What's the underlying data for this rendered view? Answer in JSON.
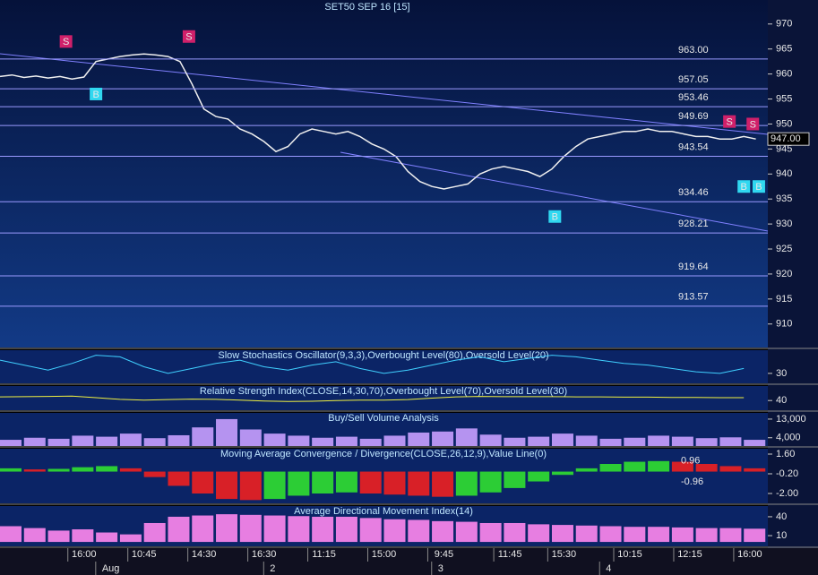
{
  "chart_data": [
    {
      "type": "line",
      "title": "SET50 SEP 16  [15]",
      "x": [
        0,
        2,
        4,
        6,
        8,
        10,
        12,
        14,
        16,
        18,
        20,
        22,
        24,
        26,
        28,
        30,
        32,
        34,
        36,
        38,
        40,
        42,
        44,
        46,
        48,
        50,
        52,
        54,
        56,
        58,
        60,
        62,
        64,
        66,
        68,
        70,
        72,
        74,
        76,
        78,
        80,
        82,
        84,
        86,
        88,
        90,
        92,
        94,
        96,
        98,
        100,
        102,
        104,
        106,
        108,
        110,
        112,
        114,
        116,
        118,
        120,
        122,
        124,
        126
      ],
      "values": [
        959.5,
        959.8,
        959.3,
        959.6,
        959.2,
        959.5,
        959.0,
        959.4,
        962.5,
        963.0,
        963.5,
        963.8,
        964.0,
        963.8,
        963.5,
        962.5,
        958.0,
        953.0,
        951.5,
        951.0,
        949.0,
        948.0,
        946.5,
        944.5,
        945.5,
        948.0,
        949.0,
        948.5,
        948.0,
        948.5,
        947.5,
        946.0,
        945.0,
        943.5,
        940.5,
        938.5,
        937.5,
        937.0,
        937.5,
        938.0,
        940.0,
        941.0,
        941.5,
        941.0,
        940.5,
        939.5,
        941.0,
        943.5,
        945.5,
        947.0,
        947.5,
        948.0,
        948.5,
        948.5,
        949.0,
        948.5,
        948.5,
        948.0,
        947.5,
        947.5,
        947.0,
        947.0,
        947.5,
        947.0
      ],
      "color": "#f0f0f0",
      "xlim": [
        0,
        128
      ],
      "ylim": [
        905.3,
        974.8
      ],
      "yticks": [
        910,
        915,
        920,
        925,
        930,
        935,
        940,
        945,
        950,
        955,
        960,
        965,
        970
      ],
      "xticks": [
        {
          "value": 14,
          "label": "16:00"
        },
        {
          "value": 24,
          "label": "10:45"
        },
        {
          "value": 34,
          "label": "14:30"
        },
        {
          "value": 44,
          "label": "16:30"
        },
        {
          "value": 54,
          "label": "11:15"
        },
        {
          "value": 64,
          "label": "15:00"
        },
        {
          "value": 74,
          "label": "9:45"
        },
        {
          "value": 85,
          "label": "11:45"
        },
        {
          "value": 94,
          "label": "15:30"
        },
        {
          "value": 105,
          "label": "10:15"
        },
        {
          "value": 115,
          "label": "12:15"
        },
        {
          "value": 125,
          "label": "16:00"
        }
      ],
      "date_ticks": [
        {
          "value": 17,
          "label": "Aug"
        },
        {
          "value": 45,
          "label": "2"
        },
        {
          "value": 73,
          "label": "3"
        },
        {
          "value": 101,
          "label": "4"
        }
      ],
      "levels": [
        {
          "value": 963,
          "label": "963.00"
        },
        {
          "value": 957.05,
          "label": "957.05"
        },
        {
          "value": 953.46,
          "label": "953.46"
        },
        {
          "value": 949.69,
          "label": "949.69"
        },
        {
          "value": 943.54,
          "label": "943.54"
        },
        {
          "value": 934.46,
          "label": "934.46"
        },
        {
          "value": 928.21,
          "label": "928.21"
        },
        {
          "value": 919.64,
          "label": "919.64"
        },
        {
          "value": 913.57,
          "label": "913.57"
        }
      ],
      "last": {
        "value": 947,
        "label": "947.00"
      },
      "signals": [
        {
          "label": "S",
          "x": 11,
          "y": 966.5
        },
        {
          "label": "S",
          "x": 31.5,
          "y": 967.5
        },
        {
          "label": "S",
          "x": 121.6,
          "y": 950.5
        },
        {
          "label": "S",
          "x": 125.5,
          "y": 950
        },
        {
          "label": "B",
          "x": 16,
          "y": 956
        },
        {
          "label": "B",
          "x": 92.5,
          "y": 931.5
        },
        {
          "label": "B",
          "x": 124,
          "y": 937.5
        },
        {
          "label": "B",
          "x": 126.5,
          "y": 937.5
        }
      ]
    },
    {
      "type": "line",
      "title": "Slow Stochastics Oscillator(9,3,3),Overbought Level(80),Oversold Level(20)",
      "x": [
        0,
        4,
        8,
        12,
        16,
        20,
        24,
        28,
        32,
        36,
        40,
        44,
        48,
        52,
        56,
        60,
        64,
        68,
        72,
        76,
        80,
        84,
        88,
        92,
        96,
        100,
        104,
        108,
        112,
        116,
        120,
        124
      ],
      "values": [
        70,
        55,
        40,
        60,
        85,
        80,
        50,
        30,
        45,
        60,
        70,
        50,
        40,
        55,
        65,
        45,
        30,
        40,
        55,
        70,
        80,
        65,
        75,
        85,
        80,
        70,
        60,
        55,
        45,
        35,
        30,
        45
      ],
      "color": "#40d0ff",
      "ylim": [
        0,
        100
      ],
      "yticks": [
        30
      ]
    },
    {
      "type": "line",
      "title": "Relative Strength Index(CLOSE,14,30,70),Overbought Level(70),Oversold Level(30)",
      "x": [
        0,
        4,
        8,
        12,
        16,
        20,
        24,
        28,
        32,
        36,
        40,
        44,
        48,
        52,
        56,
        60,
        64,
        68,
        72,
        76,
        80,
        84,
        88,
        92,
        96,
        100,
        104,
        108,
        112,
        116,
        120,
        124
      ],
      "values": [
        55,
        56,
        57,
        58,
        52,
        45,
        42,
        44,
        46,
        45,
        42,
        38,
        36,
        37,
        40,
        42,
        42,
        44,
        50,
        55,
        57,
        56,
        56,
        56,
        55,
        55,
        54,
        54,
        53,
        53,
        52,
        52
      ],
      "color": "#f0f040",
      "ylim": [
        0,
        100
      ],
      "yticks": [
        40
      ]
    },
    {
      "type": "bar",
      "title": "Buy/Sell Volume Analysis",
      "x": [
        0,
        4,
        8,
        12,
        16,
        20,
        24,
        28,
        32,
        36,
        40,
        44,
        48,
        52,
        56,
        60,
        64,
        68,
        72,
        76,
        80,
        84,
        88,
        92,
        96,
        100,
        104,
        108,
        112,
        116,
        120,
        124
      ],
      "values": [
        3000,
        4000,
        3500,
        5000,
        4500,
        6000,
        3800,
        5200,
        9000,
        13000,
        8000,
        6000,
        5000,
        4000,
        4500,
        3500,
        5000,
        6500,
        7000,
        8500,
        5500,
        4000,
        4500,
        6000,
        5000,
        3500,
        4000,
        5000,
        4500,
        3800,
        4200,
        3000
      ],
      "color": "#c8a0ff",
      "ylim": [
        0,
        16000
      ],
      "yticks": [
        {
          "value": 13000,
          "label": "13,000"
        },
        {
          "value": 4000,
          "label": "4,000"
        }
      ]
    },
    {
      "type": "bar",
      "title": "Moving Average Convergence / Divergence(CLOSE,26,12,9),Value Line(0)",
      "x": [
        0,
        4,
        8,
        12,
        16,
        20,
        24,
        28,
        32,
        36,
        40,
        44,
        48,
        52,
        56,
        60,
        64,
        68,
        72,
        76,
        80,
        84,
        88,
        92,
        96,
        100,
        104,
        108,
        112,
        116,
        120,
        124
      ],
      "values": [
        0.3,
        0.2,
        0.25,
        0.4,
        0.5,
        0.3,
        -0.5,
        -1.3,
        -2.0,
        -2.5,
        -2.6,
        -2.5,
        -2.2,
        -2.0,
        -1.9,
        -2.0,
        -2.1,
        -2.2,
        -2.3,
        -2.2,
        -1.9,
        -1.5,
        -0.9,
        -0.3,
        0.3,
        0.7,
        0.9,
        0.96,
        0.9,
        0.7,
        0.5,
        0.3
      ],
      "color": "#30e030",
      "ylim": [
        -2.9,
        2.09
      ],
      "yticks": [
        {
          "value": 1.6,
          "label": "1.60"
        },
        {
          "value": -0.2,
          "label": "-0.20"
        },
        {
          "value": -2,
          "label": "-2.00"
        }
      ],
      "annotations": [
        {
          "value": 0.96,
          "label": "0.96"
        },
        {
          "value": -0.96,
          "label": "-0.96"
        }
      ]
    },
    {
      "type": "bar",
      "title": "Average Directional Movement Index(14)",
      "x": [
        0,
        4,
        8,
        12,
        16,
        20,
        24,
        28,
        32,
        36,
        40,
        44,
        48,
        52,
        56,
        60,
        64,
        68,
        72,
        76,
        80,
        84,
        88,
        92,
        96,
        100,
        104,
        108,
        112,
        116,
        120,
        124
      ],
      "values": [
        25,
        22,
        18,
        20,
        15,
        12,
        30,
        40,
        42,
        44,
        43,
        42,
        41,
        40,
        40,
        38,
        36,
        35,
        33,
        32,
        30,
        30,
        28,
        27,
        26,
        25,
        24,
        24,
        23,
        22,
        22,
        21
      ],
      "color": "#ff88ee",
      "ylim": [
        -7,
        57
      ],
      "yticks": [
        40,
        10
      ]
    }
  ]
}
